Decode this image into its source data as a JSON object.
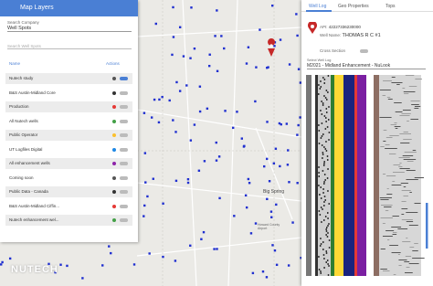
{
  "layers_panel": {
    "title": "Map Layers",
    "company_label": "Search Company",
    "company_value": "Well Spots",
    "search_placeholder": "Search Well Spots",
    "name_header": "Name",
    "actions_header": "Actions",
    "layers": [
      "Nutech study",
      "B&S Austin-Midland Core",
      "Production",
      "All Nutech wells",
      "Public Operator",
      "UT Logfiles Digital",
      "All enhancement wells",
      "Coming soon",
      "Public Data - Canada",
      "B&S Austin-Midland Ciffin...",
      "Nutech enhancement wel..."
    ]
  },
  "map": {
    "city": "Big Spring",
    "airport": "Howard County Airport",
    "logo": "NUTECH"
  },
  "well_panel": {
    "tabs": [
      "Well Log",
      "Geo Properties",
      "Tops"
    ],
    "api_label": "API:",
    "api": "42227336230000",
    "well_name_label": "Well Name:",
    "well_name": "THOMAS R C #1",
    "cross_section": "Cross Section",
    "select_label": "Select Well Log",
    "select_value": "M2021 - Midland Enhancement - NuLook"
  }
}
